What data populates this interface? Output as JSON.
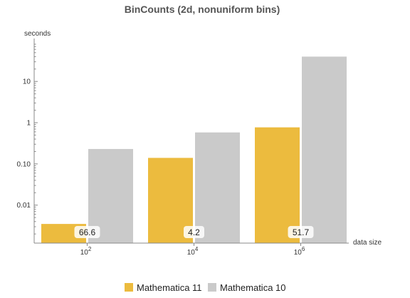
{
  "chart_data": {
    "type": "bar",
    "title": "BinCounts (2d, nonuniform bins)",
    "ylabel": "seconds",
    "xlabel": "data size",
    "y_scale": "log",
    "ylim": [
      0.0012,
      80
    ],
    "yticks": [
      {
        "value": 0.01,
        "label": "0.01"
      },
      {
        "value": 0.1,
        "label": "0.10"
      },
      {
        "value": 1,
        "label": "1"
      },
      {
        "value": 10,
        "label": "10"
      }
    ],
    "categories": [
      {
        "base": "10",
        "exp": "2"
      },
      {
        "base": "10",
        "exp": "4"
      },
      {
        "base": "10",
        "exp": "6"
      }
    ],
    "series": [
      {
        "name": "Mathematica 11",
        "color": "#ecbb3e",
        "values": [
          0.0035,
          0.14,
          0.77
        ]
      },
      {
        "name": "Mathematica 10",
        "color": "#cacaca",
        "values": [
          0.23,
          0.58,
          40
        ]
      }
    ],
    "bar_labels": [
      "66.6",
      "4.2",
      "51.7"
    ],
    "legend_position": "bottom",
    "grid": false
  }
}
